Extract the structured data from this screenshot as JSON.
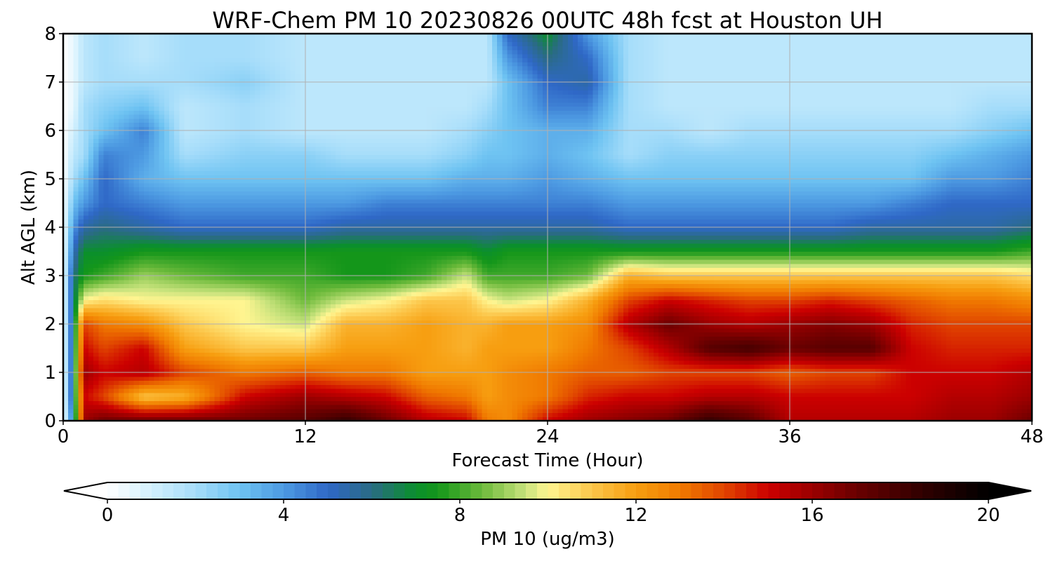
{
  "chart_data": {
    "type": "heatmap",
    "subtype": "filled-contour time-height cross section",
    "title": "WRF-Chem PM 10  20230826 00UTC 48h fcst at Houston UH",
    "xlabel": "Forecast Time (Hour)",
    "ylabel": "Alt AGL (km)",
    "xlim": [
      0,
      48
    ],
    "ylim": [
      0,
      8
    ],
    "xticks": [
      "0",
      "12",
      "24",
      "36",
      "48"
    ],
    "yticks": [
      "0",
      "1",
      "2",
      "3",
      "4",
      "5",
      "6",
      "7",
      "8"
    ],
    "grid": true,
    "colorbar": {
      "label": "PM 10  (ug/m3)",
      "orientation": "horizontal",
      "placement": "bottom",
      "range": [
        0,
        20
      ],
      "ticks": [
        "0",
        "4",
        "8",
        "12",
        "16",
        "20"
      ],
      "extend": "both",
      "stops": [
        {
          "value": 0,
          "color": "#ffffff"
        },
        {
          "value": 1,
          "color": "#d2f0fd"
        },
        {
          "value": 2,
          "color": "#a6ddfa"
        },
        {
          "value": 3,
          "color": "#6ec3f2"
        },
        {
          "value": 4,
          "color": "#4d9ae2"
        },
        {
          "value": 5,
          "color": "#2f68c7"
        },
        {
          "value": 6,
          "color": "#2a6b84"
        },
        {
          "value": 7,
          "color": "#0a8f2c"
        },
        {
          "value": 7.5,
          "color": "#14961a"
        },
        {
          "value": 8.5,
          "color": "#6cba3b"
        },
        {
          "value": 9.5,
          "color": "#c9e37d"
        },
        {
          "value": 10,
          "color": "#fff591"
        },
        {
          "value": 11,
          "color": "#fcc64a"
        },
        {
          "value": 12,
          "color": "#f79e10"
        },
        {
          "value": 13,
          "color": "#f07a00"
        },
        {
          "value": 14,
          "color": "#e04400"
        },
        {
          "value": 15,
          "color": "#cc0000"
        },
        {
          "value": 16,
          "color": "#9b0000"
        },
        {
          "value": 17,
          "color": "#6a0000"
        },
        {
          "value": 18.5,
          "color": "#300000"
        },
        {
          "value": 20,
          "color": "#000000"
        }
      ]
    },
    "heights_km": [
      0,
      0.5,
      1,
      1.5,
      2,
      2.5,
      3,
      3.5,
      4,
      4.5,
      5,
      5.5,
      6,
      6.5,
      7,
      7.5,
      8
    ],
    "columns": [
      {
        "hour": 0,
        "values": [
          0,
          0,
          0,
          0,
          0,
          0,
          0,
          0,
          0,
          0,
          0,
          0,
          0,
          0,
          0,
          0,
          0
        ]
      },
      {
        "hour": 0.5,
        "values": [
          5,
          6,
          6,
          6,
          6,
          6,
          6,
          5,
          4,
          3,
          2,
          1.5,
          1,
          0.5,
          0.5,
          0.5,
          0.5
        ]
      },
      {
        "hour": 1,
        "values": [
          16,
          15,
          16,
          15,
          14,
          10,
          7.5,
          7,
          5.5,
          4,
          3,
          2,
          2,
          2,
          1.5,
          1.5,
          1.5
        ]
      },
      {
        "hour": 2,
        "values": [
          17,
          14,
          15,
          14,
          13,
          10.5,
          8,
          7,
          6,
          5,
          5,
          4.5,
          3,
          2.5,
          2,
          2,
          2
        ]
      },
      {
        "hour": 4,
        "values": [
          17,
          11,
          15.5,
          15,
          12.5,
          10,
          9,
          7.5,
          5.5,
          4.5,
          3.5,
          4,
          4.5,
          3,
          2,
          1.5,
          1.5
        ]
      },
      {
        "hour": 6,
        "values": [
          17,
          11.5,
          14,
          12,
          11,
          10,
          8.5,
          7.5,
          5,
          4,
          3,
          2,
          1.5,
          1.5,
          2,
          2,
          2
        ]
      },
      {
        "hour": 9,
        "values": [
          17,
          15,
          13,
          11,
          10,
          10,
          8,
          7.5,
          5,
          4,
          3,
          2.5,
          2,
          2,
          2.5,
          2,
          2
        ]
      },
      {
        "hour": 12,
        "values": [
          17.5,
          16,
          13.5,
          11,
          9.5,
          8.5,
          8,
          7.5,
          5,
          4,
          3,
          2.5,
          1.5,
          1.5,
          1.5,
          1.5,
          1.5
        ]
      },
      {
        "hour": 14,
        "values": [
          18.5,
          15.5,
          13,
          12,
          11.5,
          9.5,
          7.5,
          7.5,
          5.5,
          4,
          3,
          2,
          1.5,
          1.5,
          1.5,
          1.5,
          1.5
        ]
      },
      {
        "hour": 16,
        "values": [
          17,
          15,
          13,
          12,
          11.5,
          10,
          7.5,
          7.5,
          5.5,
          4.5,
          3,
          2,
          1.5,
          1.5,
          1.5,
          1.5,
          1.5
        ]
      },
      {
        "hour": 18,
        "values": [
          15.5,
          13.5,
          12,
          12,
          12,
          11,
          8,
          7.5,
          5.5,
          4.5,
          3,
          2,
          1.5,
          1.5,
          1.5,
          1.5,
          1.5
        ]
      },
      {
        "hour": 20,
        "values": [
          15,
          13,
          12,
          11.5,
          11.5,
          11,
          9.5,
          7.5,
          5.5,
          4.5,
          3.5,
          2.5,
          2,
          1.5,
          1.5,
          1.5,
          1.5
        ]
      },
      {
        "hour": 21,
        "values": [
          13,
          12,
          12,
          12,
          11.5,
          10,
          8,
          7,
          5.5,
          4.5,
          3.5,
          3,
          2.5,
          2,
          1.5,
          1.5,
          1.5
        ]
      },
      {
        "hour": 22,
        "values": [
          12.5,
          12.5,
          12.5,
          12,
          12,
          9.5,
          8,
          7.5,
          5.5,
          4.5,
          3.5,
          3,
          3,
          3,
          3,
          4,
          5
        ]
      },
      {
        "hour": 24,
        "values": [
          15,
          13,
          13,
          12,
          12,
          10,
          8,
          7.5,
          5.5,
          4.5,
          4,
          3.5,
          3.5,
          4.5,
          5,
          6,
          7
        ]
      },
      {
        "hour": 26,
        "values": [
          16,
          14.5,
          13.5,
          13,
          12.5,
          11.5,
          8.5,
          7.5,
          5.5,
          4.5,
          3.5,
          3,
          3.5,
          4.5,
          5.5,
          5,
          4
        ]
      },
      {
        "hour": 28,
        "values": [
          16.5,
          15,
          13.5,
          14,
          15.5,
          14,
          11.5,
          7.5,
          5,
          4,
          3,
          2,
          2,
          2,
          2,
          2,
          2
        ]
      },
      {
        "hour": 30,
        "values": [
          17,
          15,
          14,
          15.5,
          17,
          15,
          11,
          7.5,
          5,
          4,
          3,
          2.5,
          2,
          1.5,
          1.5,
          1.5,
          1.5
        ]
      },
      {
        "hour": 32,
        "values": [
          18.5,
          15.5,
          14,
          17.5,
          16,
          14.5,
          11,
          7.5,
          5,
          4,
          3,
          2.5,
          1.5,
          1.5,
          1.5,
          1.5,
          1.5
        ]
      },
      {
        "hour": 34,
        "values": [
          17.5,
          15.5,
          14,
          18,
          15.5,
          14,
          11,
          7.5,
          5,
          4,
          3,
          2.5,
          2,
          1.5,
          1.5,
          1.5,
          1.5
        ]
      },
      {
        "hour": 36,
        "values": [
          15.5,
          15,
          13.5,
          17,
          16,
          14,
          11,
          7.5,
          5,
          4,
          3,
          2.5,
          2,
          1.5,
          1.5,
          1.5,
          1.5
        ]
      },
      {
        "hour": 38,
        "values": [
          15.5,
          15,
          14,
          17.5,
          16.5,
          14.5,
          11,
          7.5,
          5,
          4,
          3,
          2.5,
          2,
          1.5,
          1.5,
          1.5,
          1.5
        ]
      },
      {
        "hour": 40,
        "values": [
          15.5,
          15,
          14,
          17.5,
          16,
          14,
          11,
          7.5,
          5.5,
          4,
          3,
          2.5,
          2,
          1.5,
          1.5,
          1.5,
          1.5
        ]
      },
      {
        "hour": 42,
        "values": [
          15.5,
          15,
          15,
          15,
          14.5,
          13.5,
          11,
          7.5,
          5.5,
          4.5,
          3,
          2.5,
          2,
          1.5,
          1.5,
          1.5,
          1.5
        ]
      },
      {
        "hour": 44,
        "values": [
          16,
          15.5,
          15,
          14.5,
          14,
          13,
          11,
          7.5,
          5.5,
          5,
          4,
          3,
          2,
          1.5,
          1.5,
          1.5,
          1.5
        ]
      },
      {
        "hour": 46,
        "values": [
          16,
          15.5,
          15,
          14.5,
          14,
          13,
          11,
          7.5,
          5.5,
          5,
          4,
          3.5,
          2.5,
          2,
          1.5,
          1.5,
          1.5
        ]
      },
      {
        "hour": 48,
        "values": [
          17,
          16,
          15.5,
          14.5,
          14,
          12.5,
          10.5,
          8,
          6,
          5,
          4.5,
          4,
          3,
          2,
          1.5,
          1.5,
          1.5
        ]
      }
    ]
  }
}
